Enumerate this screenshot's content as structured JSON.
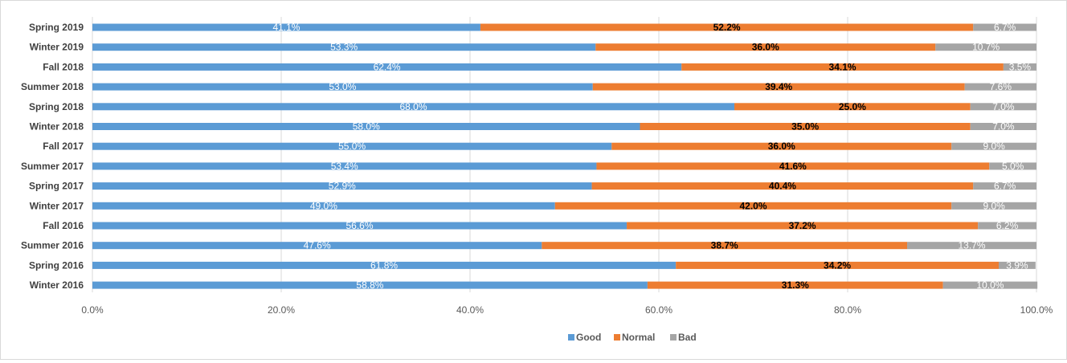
{
  "chart_data": {
    "type": "bar",
    "orientation": "horizontal",
    "stacked": "percent",
    "categories": [
      "Spring 2019",
      "Winter 2019",
      "Fall 2018",
      "Summer 2018",
      "Spring 2018",
      "Winter 2018",
      "Fall 2017",
      "Summer 2017",
      "Spring 2017",
      "Winter 2017",
      "Fall 2016",
      "Summer 2016",
      "Spring 2016",
      "Winter 2016"
    ],
    "series": [
      {
        "name": "Good",
        "color": "#5b9bd5",
        "values": [
          41.1,
          53.3,
          62.4,
          53.0,
          68.0,
          58.0,
          55.0,
          53.4,
          52.9,
          49.0,
          56.6,
          47.6,
          61.8,
          58.8
        ],
        "labels": [
          "41.1%",
          "53.3%",
          "62.4%",
          "53.0%",
          "68.0%",
          "58.0%",
          "55.0%",
          "53.4%",
          "52.9%",
          "49.0%",
          "56.6%",
          "47.6%",
          "61.8%",
          "58.8%"
        ]
      },
      {
        "name": "Normal",
        "color": "#ed7d31",
        "values": [
          52.2,
          36.0,
          34.1,
          39.4,
          25.0,
          35.0,
          36.0,
          41.6,
          40.4,
          42.0,
          37.2,
          38.7,
          34.2,
          31.3
        ],
        "labels": [
          "52.2%",
          "36.0%",
          "34.1%",
          "39.4%",
          "25.0%",
          "35.0%",
          "36.0%",
          "41.6%",
          "40.4%",
          "42.0%",
          "37.2%",
          "38.7%",
          "34.2%",
          "31.3%"
        ]
      },
      {
        "name": "Bad",
        "color": "#a5a5a5",
        "values": [
          6.7,
          10.7,
          3.5,
          7.6,
          7.0,
          7.0,
          9.0,
          5.0,
          6.7,
          9.0,
          6.2,
          13.7,
          3.9,
          10.0
        ],
        "labels": [
          "6.7%",
          "10.7%",
          "3.5%",
          "7.6%",
          "7.0%",
          "7.0%",
          "9.0%",
          "5.0%",
          "6.7%",
          "9.0%",
          "6.2%",
          "13.7%",
          "3.9%",
          "10.0%"
        ]
      }
    ],
    "x_ticks": [
      "0.0%",
      "20.0%",
      "40.0%",
      "60.0%",
      "80.0%",
      "100.0%"
    ],
    "xlim": [
      0,
      100
    ],
    "grid": true,
    "legend_position": "bottom",
    "title": "",
    "xlabel": "",
    "ylabel": ""
  }
}
